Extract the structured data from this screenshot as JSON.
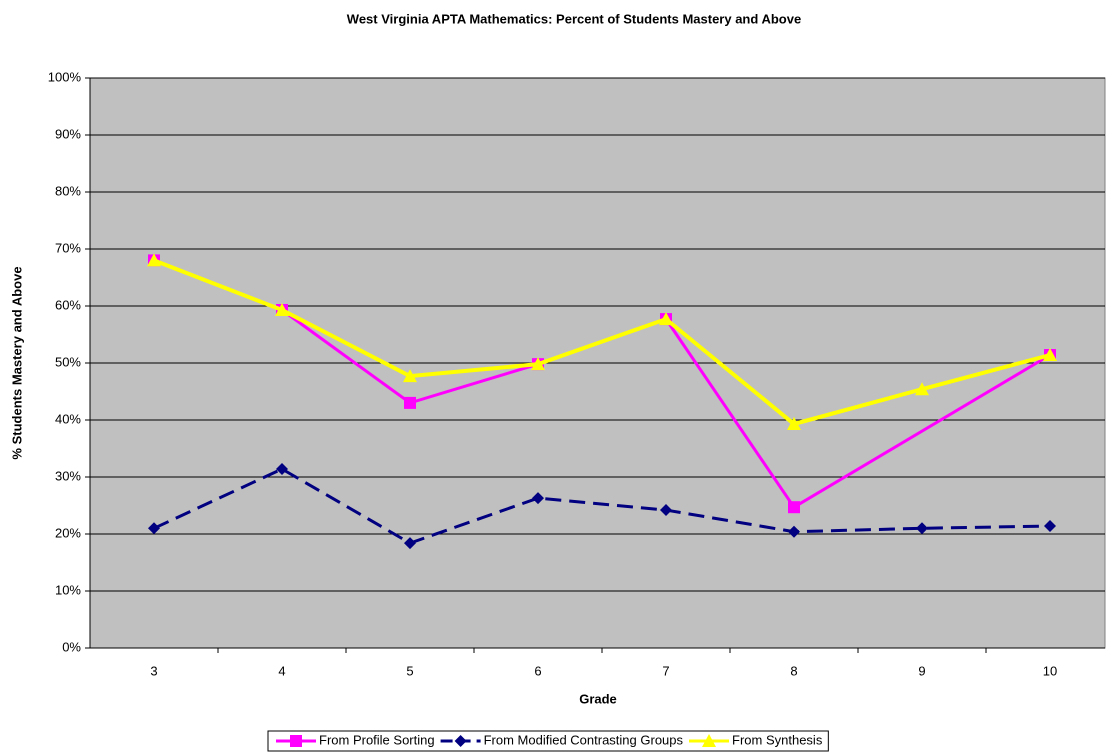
{
  "chart_data": {
    "type": "line",
    "title": "West Virginia APTA Mathematics: Percent of Students Mastery and Above",
    "x_label": "Grade",
    "y_label": "% Students Mastery and Above",
    "categories": [
      "3",
      "4",
      "5",
      "6",
      "7",
      "8",
      "9",
      "10"
    ],
    "series": [
      {
        "name": "From Profile Sorting",
        "color": "#ff00ff",
        "marker": "square",
        "dash": "solid",
        "connect_gaps": true,
        "values": [
          68,
          59.3,
          43,
          49.8,
          57.7,
          24.7,
          null,
          51.4
        ]
      },
      {
        "name": "From Modified Contrasting Groups",
        "color": "#000080",
        "marker": "diamond",
        "dash": "dashed",
        "values": [
          21,
          31.4,
          18.4,
          26.3,
          24.2,
          20.4,
          21,
          21.4
        ]
      },
      {
        "name": "From Synthesis",
        "color": "#ffff00",
        "marker": "triangle",
        "dash": "solid",
        "values": [
          68,
          59.3,
          47.7,
          49.8,
          57.7,
          39.3,
          45.4,
          51.4
        ]
      }
    ],
    "ylim": [
      0,
      100
    ],
    "yticks": [
      {
        "value": 0,
        "label": "0%"
      },
      {
        "value": 10,
        "label": "10%"
      },
      {
        "value": 20,
        "label": "20%"
      },
      {
        "value": 30,
        "label": "30%"
      },
      {
        "value": 40,
        "label": "40%"
      },
      {
        "value": 50,
        "label": "50%"
      },
      {
        "value": 60,
        "label": "60%"
      },
      {
        "value": 70,
        "label": "70%"
      },
      {
        "value": 80,
        "label": "80%"
      },
      {
        "value": 90,
        "label": "90%"
      },
      {
        "value": 100,
        "label": "100%"
      }
    ],
    "grid": true,
    "legend": "bottom"
  }
}
